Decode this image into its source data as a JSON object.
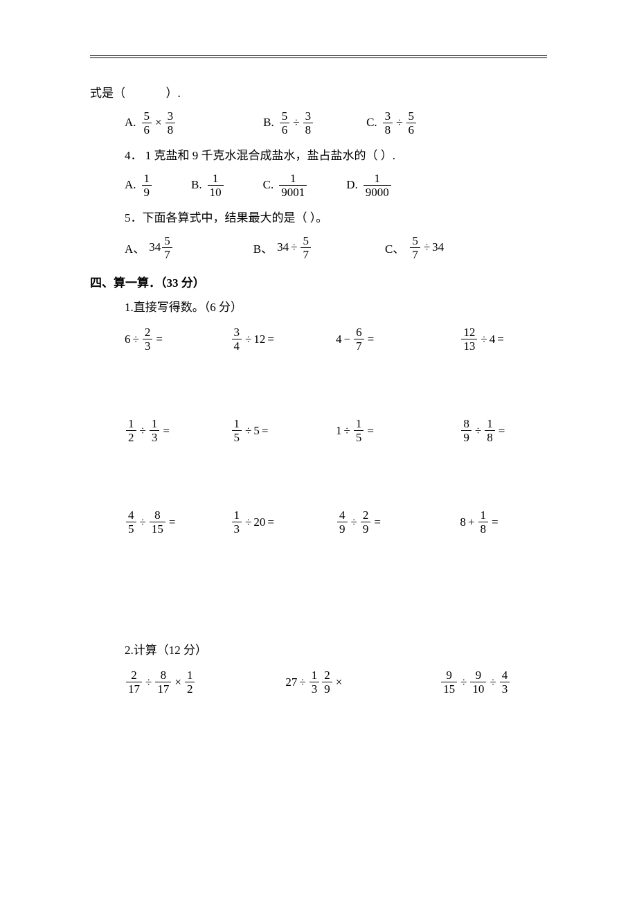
{
  "q_line_top": "式是（",
  "q_line_top_end": "）.",
  "q3_opts": {
    "A": {
      "lab": "A.",
      "n1": "5",
      "d1": "6",
      "op": "×",
      "n2": "3",
      "d2": "8"
    },
    "B": {
      "lab": "B.",
      "n1": "5",
      "d1": "6",
      "op": "÷",
      "n2": "3",
      "d2": "8"
    },
    "C": {
      "lab": "C.",
      "n1": "3",
      "d1": "8",
      "op": "÷",
      "n2": "5",
      "d2": "6"
    }
  },
  "q4_text": "4．  1 克盐和 9 千克水混合成盐水，盐占盐水的（      ）.",
  "q4_opts": {
    "A": {
      "lab": "A.",
      "n": "1",
      "d": "9"
    },
    "B": {
      "lab": "B.",
      "n": "1",
      "d": "10"
    },
    "C": {
      "lab": "C.",
      "n": "1",
      "d": "9001"
    },
    "D": {
      "lab": "D.",
      "n": "1",
      "d": "9000"
    }
  },
  "q5_text": "5．下面各算式中，结果最大的是（     ）。",
  "q5_opts": {
    "A": {
      "lab": "A、",
      "pre": "34",
      "n": "5",
      "d": "7",
      "mode": "mixed"
    },
    "B": {
      "lab": "B、",
      "pre": "34",
      "op": "÷",
      "n": "5",
      "d": "7"
    },
    "C": {
      "lab": "C、",
      "n": "5",
      "d": "7",
      "op": "÷",
      "post": "34"
    }
  },
  "section4": "四、算一算．（33 分）",
  "sub1": "1.直接写得数。（6 分）",
  "calc_rows": [
    [
      {
        "a": "6",
        "op1": "÷",
        "n1": "2",
        "d1": "3",
        "eq": "="
      },
      {
        "n1": "3",
        "d1": "4",
        "op1": "÷",
        "b": "12",
        "eq": "="
      },
      {
        "a": "4",
        "op1": "−",
        "n1": "6",
        "d1": "7",
        "eq": "="
      },
      {
        "n1": "12",
        "d1": "13",
        "op1": "÷",
        "b": "4",
        "eq": "="
      }
    ],
    [
      {
        "n1": "1",
        "d1": "2",
        "op1": "÷",
        "n2": "1",
        "d2": "3",
        "eq": "="
      },
      {
        "n1": "1",
        "d1": "5",
        "op1": "÷",
        "b": "5",
        "eq": "="
      },
      {
        "a": "1",
        "op1": "÷",
        "n1": "1",
        "d1": "5",
        "eq": "="
      },
      {
        "n1": "8",
        "d1": "9",
        "op1": "÷",
        "n2": "1",
        "d2": "8",
        "eq": "="
      }
    ],
    [
      {
        "n1": "4",
        "d1": "5",
        "op1": "÷",
        "n2": "8",
        "d2": "15",
        "eq": "="
      },
      {
        "n1": "1",
        "d1": "3",
        "op1": "÷",
        "b": "20",
        "eq": "="
      },
      {
        "n1": "4",
        "d1": "9",
        "op1": "÷",
        "n2": "2",
        "d2": "9",
        "eq": "="
      },
      {
        "a": "8",
        "op1": "+",
        "n1": "1",
        "d1": "8",
        "eq": "="
      }
    ]
  ],
  "sub2": "2.计算（12 分）",
  "calc2": [
    {
      "n1": "2",
      "d1": "17",
      "op1": "÷",
      "n2": "8",
      "d2": "17",
      "op2": "×",
      "n3": "1",
      "d3": "2"
    },
    {
      "a": "27",
      "op1": "÷",
      "n1": "1",
      "d1": "3",
      "op2": "×",
      "n2": "2",
      "d2": "9"
    },
    {
      "n1": "9",
      "d1": "15",
      "op1": "÷",
      "n2": "9",
      "d2": "10",
      "op2": "÷",
      "n3": "4",
      "d3": "3"
    }
  ]
}
